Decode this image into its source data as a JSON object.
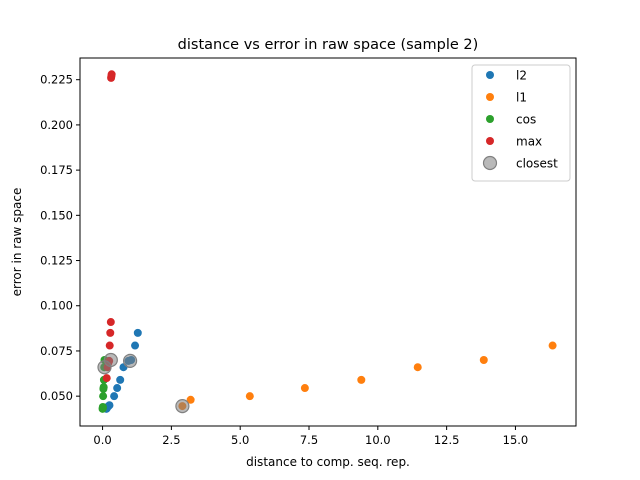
{
  "chart_data": {
    "type": "scatter",
    "title": "distance vs error in raw space (sample 2)",
    "xlabel": "distance to comp. seq. rep.",
    "ylabel": "error in raw space",
    "xlim": [
      -0.82,
      17.2
    ],
    "ylim": [
      0.0335,
      0.237
    ],
    "xticks": [
      0.0,
      2.5,
      5.0,
      7.5,
      10.0,
      12.5,
      15.0
    ],
    "xtick_labels": [
      "0.0",
      "2.5",
      "5.0",
      "7.5",
      "10.0",
      "12.5",
      "15.0"
    ],
    "yticks": [
      0.05,
      0.075,
      0.1,
      0.125,
      0.15,
      0.175,
      0.2,
      0.225
    ],
    "ytick_labels": [
      "0.050",
      "0.075",
      "0.100",
      "0.125",
      "0.150",
      "0.175",
      "0.200",
      "0.225"
    ],
    "grid": false,
    "legend_position": "top-right",
    "series": [
      {
        "name": "l2",
        "color": "#1f77b4",
        "points": [
          [
            0.14,
            0.043
          ],
          [
            0.16,
            0.0435
          ],
          [
            0.18,
            0.044
          ],
          [
            0.22,
            0.0445
          ],
          [
            0.25,
            0.045
          ],
          [
            0.42,
            0.05
          ],
          [
            0.53,
            0.0545
          ],
          [
            0.64,
            0.059
          ],
          [
            0.76,
            0.066
          ],
          [
            0.94,
            0.0695
          ],
          [
            1.04,
            0.07
          ],
          [
            1.18,
            0.078
          ],
          [
            1.28,
            0.085
          ]
        ]
      },
      {
        "name": "l1",
        "color": "#ff7f0e",
        "points": [
          [
            2.9,
            0.0445
          ],
          [
            3.2,
            0.048
          ],
          [
            5.35,
            0.05
          ],
          [
            7.35,
            0.0545
          ],
          [
            9.4,
            0.059
          ],
          [
            11.45,
            0.066
          ],
          [
            13.85,
            0.07
          ],
          [
            16.35,
            0.078
          ]
        ]
      },
      {
        "name": "cos",
        "color": "#2ca02c",
        "points": [
          [
            0.0,
            0.043
          ],
          [
            0.01,
            0.0435
          ],
          [
            0.01,
            0.044
          ],
          [
            0.02,
            0.05
          ],
          [
            0.03,
            0.054
          ],
          [
            0.04,
            0.055
          ],
          [
            0.05,
            0.059
          ],
          [
            0.06,
            0.066
          ],
          [
            0.07,
            0.07
          ]
        ]
      },
      {
        "name": "max",
        "color": "#d62728",
        "points": [
          [
            0.15,
            0.06
          ],
          [
            0.18,
            0.066
          ],
          [
            0.21,
            0.0685
          ],
          [
            0.24,
            0.0695
          ],
          [
            0.26,
            0.078
          ],
          [
            0.28,
            0.085
          ],
          [
            0.3,
            0.091
          ],
          [
            0.31,
            0.226
          ],
          [
            0.32,
            0.227
          ],
          [
            0.33,
            0.228
          ]
        ]
      },
      {
        "name": "closest",
        "color": "#808080",
        "marker": "large-circle",
        "points": [
          [
            0.07,
            0.066
          ],
          [
            0.3,
            0.07
          ],
          [
            1.0,
            0.0695
          ],
          [
            2.9,
            0.0445
          ]
        ]
      }
    ]
  }
}
